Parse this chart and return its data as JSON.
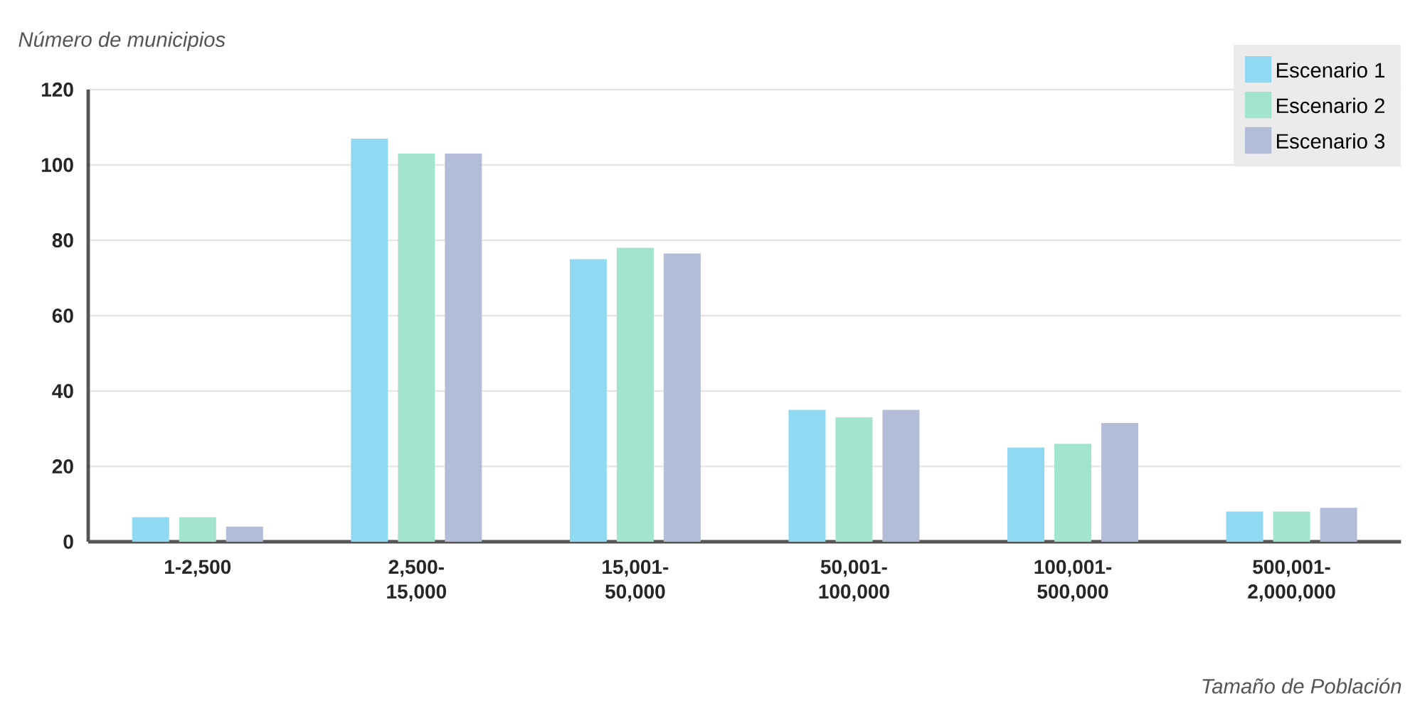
{
  "chart_data": {
    "type": "bar",
    "xlabel": "Tamaño de Población",
    "ylabel": "Número de municipios",
    "categories": [
      "1-2,500",
      "2,500-15,000",
      "15,001-50,000",
      "50,001-100,000",
      "100,001-500,000",
      "500,001-2,000,000"
    ],
    "series": [
      {
        "name": "Escenario 1",
        "color": "#8fd9f2",
        "values": [
          6.5,
          107,
          75,
          35,
          25,
          8
        ]
      },
      {
        "name": "Escenario 2",
        "color": "#a3e4cc",
        "values": [
          6.5,
          103,
          78,
          33,
          26,
          8
        ]
      },
      {
        "name": "Escenario 3",
        "color": "#b4bdd8",
        "values": [
          4,
          103,
          76.5,
          35,
          31.5,
          9
        ]
      }
    ],
    "ylim": [
      0,
      120
    ],
    "yticks": [
      0,
      20,
      40,
      60,
      80,
      100,
      120
    ],
    "grid": "y",
    "legend": "top right"
  }
}
